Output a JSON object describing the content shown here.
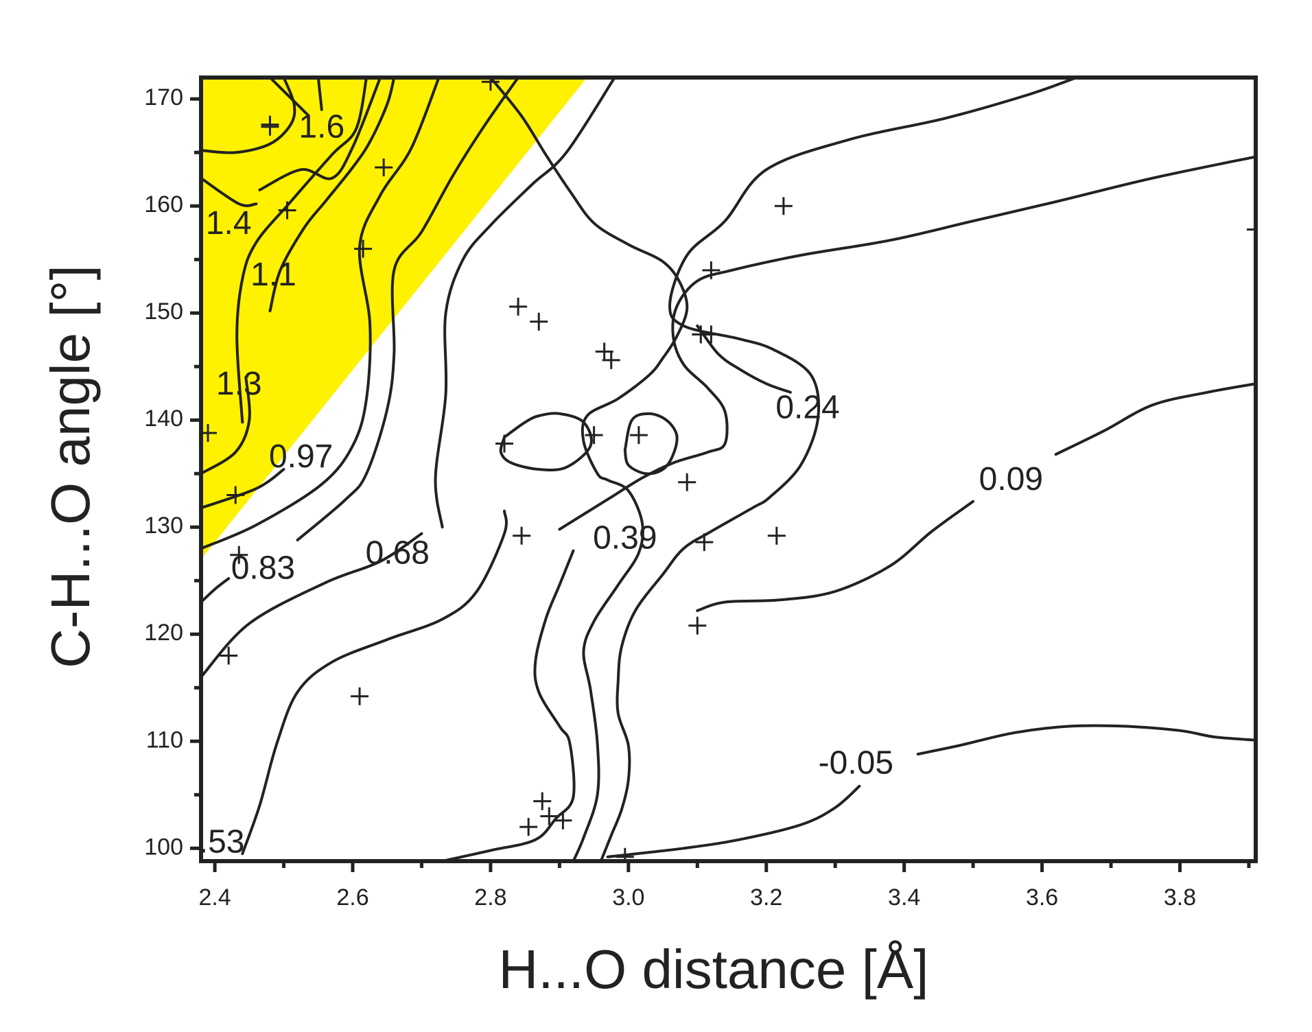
{
  "chart_data": {
    "type": "contour",
    "title": "",
    "xlabel": "H...O distance [Å]",
    "ylabel": "C-H...O angle [°]",
    "xlim": [
      2.38,
      3.91
    ],
    "ylim": [
      98.8,
      172
    ],
    "x_ticks": [
      2.4,
      2.6,
      2.8,
      3.0,
      3.2,
      3.4,
      3.6,
      3.8
    ],
    "x_tick_labels": [
      "2.4",
      "2.6",
      "2.8",
      "3.0",
      "3.2",
      "3.4",
      "3.6",
      "3.8"
    ],
    "y_ticks": [
      100,
      110,
      120,
      130,
      140,
      150,
      160,
      170
    ],
    "y_tick_labels": [
      "100",
      "110",
      "120",
      "130",
      "140",
      "150",
      "160",
      "170"
    ],
    "grid": false,
    "colors": {
      "highlight": "#fff200",
      "line": "#222222"
    },
    "highlight_region": [
      [
        2.38,
        172
      ],
      [
        2.94,
        172
      ],
      [
        2.38,
        127
      ]
    ],
    "contour_labels": [
      {
        "text": "1.6",
        "x": 2.555,
        "y": 167.2
      },
      {
        "text": "1.4",
        "x": 2.42,
        "y": 158.2
      },
      {
        "text": "1.1",
        "x": 2.485,
        "y": 153.4
      },
      {
        "text": "1.3",
        "x": 2.435,
        "y": 143.2
      },
      {
        "text": "0.97",
        "x": 2.525,
        "y": 136.4
      },
      {
        "text": "0.83",
        "x": 2.47,
        "y": 126.0
      },
      {
        "text": "0.68",
        "x": 2.665,
        "y": 127.4
      },
      {
        "text": "0.39",
        "x": 2.995,
        "y": 128.8
      },
      {
        "text": "0.24",
        "x": 3.26,
        "y": 141.0
      },
      {
        "text": "0.09",
        "x": 3.555,
        "y": 134.3
      },
      {
        "text": "-0.05",
        "x": 3.33,
        "y": 107.8
      },
      {
        "text": ".53",
        "x": 2.41,
        "y": 100.4
      }
    ],
    "contour_lines": [
      [
        [
          2.38,
          165.2
        ],
        [
          2.43,
          165.0
        ],
        [
          2.48,
          165.8
        ],
        [
          2.51,
          167.6
        ],
        [
          2.515,
          169.5
        ],
        [
          2.5,
          172
        ]
      ],
      [
        [
          2.48,
          172
        ],
        [
          2.535,
          168.5
        ]
      ],
      [
        [
          2.55,
          172
        ],
        [
          2.555,
          169
        ]
      ],
      [
        [
          2.465,
          161.5
        ],
        [
          2.525,
          163.4
        ],
        [
          2.57,
          162.6
        ],
        [
          2.6,
          165.5
        ],
        [
          2.64,
          172
        ]
      ],
      [
        [
          2.38,
          162.6
        ],
        [
          2.435,
          160.2
        ],
        [
          2.46,
          160.2
        ]
      ],
      [
        [
          2.44,
          139.8
        ],
        [
          2.432,
          147.8
        ],
        [
          2.44,
          153.2
        ],
        [
          2.46,
          156.6
        ],
        [
          2.51,
          160.4
        ],
        [
          2.57,
          164.8
        ],
        [
          2.605,
          167.2
        ],
        [
          2.62,
          172
        ]
      ],
      [
        [
          2.38,
          135.0
        ],
        [
          2.43,
          137.0
        ],
        [
          2.45,
          140.0
        ],
        [
          2.445,
          144.0
        ]
      ],
      [
        [
          2.38,
          131.8
        ],
        [
          2.46,
          133.6
        ],
        [
          2.5,
          135.4
        ]
      ],
      [
        [
          2.48,
          150.2
        ],
        [
          2.495,
          154.0
        ],
        [
          2.53,
          158.0
        ],
        [
          2.56,
          160.4
        ],
        [
          2.6,
          163.6
        ],
        [
          2.625,
          166.0
        ],
        [
          2.65,
          169.5
        ],
        [
          2.66,
          172
        ]
      ],
      [
        [
          2.38,
          128.0
        ],
        [
          2.46,
          130.2
        ],
        [
          2.555,
          134.0
        ],
        [
          2.6,
          137.6
        ],
        [
          2.62,
          142.0
        ],
        [
          2.625,
          149.0
        ],
        [
          2.61,
          156.2
        ],
        [
          2.64,
          161.0
        ],
        [
          2.685,
          165.4
        ],
        [
          2.725,
          172
        ]
      ],
      [
        [
          2.38,
          116.0
        ],
        [
          2.45,
          121.0
        ],
        [
          2.56,
          124.8
        ],
        [
          2.64,
          126.8
        ],
        [
          2.7,
          129.4
        ]
      ],
      [
        [
          2.38,
          123.0
        ],
        [
          2.4,
          124.2
        ],
        [
          2.42,
          125.2
        ]
      ],
      [
        [
          2.52,
          128.8
        ],
        [
          2.59,
          132.6
        ],
        [
          2.62,
          135.0
        ],
        [
          2.65,
          141.0
        ],
        [
          2.66,
          146.2
        ],
        [
          2.66,
          154.0
        ],
        [
          2.7,
          157.6
        ],
        [
          2.745,
          162.8
        ],
        [
          2.79,
          167.4
        ],
        [
          2.84,
          172
        ]
      ],
      [
        [
          2.73,
          130.0
        ],
        [
          2.72,
          134.6
        ],
        [
          2.735,
          142.4
        ],
        [
          2.735,
          150.0
        ],
        [
          2.76,
          155.0
        ],
        [
          2.8,
          158.2
        ],
        [
          2.86,
          162.0
        ],
        [
          2.91,
          165.0
        ],
        [
          2.98,
          172
        ]
      ],
      [
        [
          2.44,
          99.5
        ],
        [
          2.465,
          104.0
        ],
        [
          2.49,
          109.8
        ],
        [
          2.52,
          114.6
        ],
        [
          2.57,
          117.4
        ],
        [
          2.65,
          119.5
        ],
        [
          2.73,
          121.4
        ],
        [
          2.78,
          124.0
        ],
        [
          2.82,
          129.4
        ],
        [
          2.82,
          131.5
        ]
      ],
      [
        [
          2.73,
          98.8
        ],
        [
          2.8,
          99.8
        ],
        [
          2.865,
          100.8
        ],
        [
          2.895,
          102.8
        ],
        [
          2.92,
          104.8
        ],
        [
          2.915,
          109.8
        ],
        [
          2.9,
          111.4
        ],
        [
          2.87,
          114.6
        ],
        [
          2.865,
          117.4
        ],
        [
          2.88,
          121.4
        ],
        [
          2.9,
          124.6
        ],
        [
          2.92,
          127.8
        ]
      ],
      [
        [
          2.96,
          98.8
        ],
        [
          2.975,
          101.2
        ],
        [
          2.99,
          103.6
        ],
        [
          3.0,
          106.4
        ],
        [
          3.0,
          109.6
        ],
        [
          2.985,
          112.6
        ],
        [
          2.985,
          115.6
        ],
        [
          2.99,
          118.8
        ],
        [
          3.01,
          122.2
        ],
        [
          3.05,
          125.6
        ],
        [
          3.08,
          128.0
        ],
        [
          3.12,
          129.6
        ],
        [
          3.18,
          131.8
        ],
        [
          3.205,
          132.8
        ],
        [
          3.25,
          135.8
        ],
        [
          3.275,
          140.2
        ],
        [
          3.265,
          144.2
        ],
        [
          3.21,
          146.6
        ],
        [
          3.16,
          147.6
        ],
        [
          3.08,
          148.8
        ],
        [
          3.06,
          150.8
        ],
        [
          3.085,
          155.4
        ],
        [
          3.14,
          158.6
        ],
        [
          3.2,
          163.4
        ],
        [
          3.32,
          166.2
        ],
        [
          3.46,
          168.2
        ],
        [
          3.58,
          170.4
        ],
        [
          3.65,
          172
        ]
      ],
      [
        [
          2.92,
          98.8
        ],
        [
          2.935,
          101.0
        ],
        [
          2.955,
          105.0
        ],
        [
          2.955,
          109.8
        ],
        [
          2.945,
          114.8
        ],
        [
          2.935,
          118.4
        ],
        [
          2.95,
          121.2
        ],
        [
          2.985,
          124.6
        ],
        [
          3.015,
          127.6
        ],
        [
          3.02,
          130.4
        ],
        [
          3.0,
          133.4
        ],
        [
          2.97,
          134.4
        ],
        [
          2.955,
          135.0
        ],
        [
          2.935,
          138.0
        ],
        [
          2.94,
          140.4
        ],
        [
          2.985,
          142.0
        ],
        [
          3.03,
          144.2
        ],
        [
          3.05,
          145.8
        ],
        [
          3.07,
          147.8
        ],
        [
          3.085,
          150.4
        ],
        [
          3.075,
          152.8
        ],
        [
          3.05,
          154.8
        ],
        [
          3.0,
          156.4
        ],
        [
          2.95,
          158.4
        ],
        [
          2.915,
          161.4
        ],
        [
          2.88,
          164.8
        ],
        [
          2.845,
          168.4
        ],
        [
          2.8,
          172
        ]
      ],
      [
        [
          2.9,
          129.8
        ],
        [
          2.97,
          132.6
        ],
        [
          3.02,
          134.6
        ],
        [
          3.065,
          136.0
        ],
        [
          3.115,
          137.0
        ],
        [
          3.14,
          137.8
        ],
        [
          3.14,
          140.8
        ],
        [
          3.115,
          143.0
        ],
        [
          3.08,
          145.2
        ],
        [
          3.065,
          147.8
        ],
        [
          3.07,
          150.6
        ],
        [
          3.1,
          153.0
        ],
        [
          3.15,
          154.0
        ],
        [
          3.25,
          155.4
        ],
        [
          3.38,
          156.8
        ],
        [
          3.5,
          158.6
        ],
        [
          3.62,
          160.4
        ],
        [
          3.76,
          162.6
        ],
        [
          3.91,
          164.6
        ]
      ],
      [
        [
          3.1,
          148.8
        ],
        [
          3.13,
          146.2
        ],
        [
          3.16,
          144.8
        ],
        [
          3.2,
          143.4
        ],
        [
          3.235,
          142.6
        ]
      ],
      [
        [
          3.1,
          122.2
        ],
        [
          3.14,
          123.0
        ],
        [
          3.22,
          123.2
        ],
        [
          3.3,
          124.0
        ],
        [
          3.38,
          126.4
        ],
        [
          3.44,
          129.6
        ],
        [
          3.5,
          132.4
        ]
      ],
      [
        [
          3.62,
          136.8
        ],
        [
          3.69,
          139.0
        ],
        [
          3.76,
          141.4
        ],
        [
          3.84,
          142.6
        ],
        [
          3.91,
          143.4
        ]
      ],
      [
        [
          2.97,
          99.2
        ],
        [
          3.08,
          100.0
        ],
        [
          3.16,
          100.8
        ],
        [
          3.25,
          102.2
        ],
        [
          3.3,
          103.8
        ],
        [
          3.335,
          105.8
        ]
      ],
      [
        [
          3.42,
          108.8
        ],
        [
          3.48,
          109.6
        ],
        [
          3.56,
          110.8
        ],
        [
          3.64,
          111.4
        ],
        [
          3.72,
          111.4
        ],
        [
          3.8,
          111.0
        ],
        [
          3.85,
          110.4
        ],
        [
          3.91,
          110.1
        ]
      ],
      [
        [
          2.82,
          138.4
        ],
        [
          2.85,
          139.8
        ],
        [
          2.87,
          140.4
        ],
        [
          2.9,
          140.6
        ],
        [
          2.935,
          139.8
        ],
        [
          2.945,
          137.6
        ],
        [
          2.91,
          135.6
        ],
        [
          2.87,
          135.4
        ],
        [
          2.83,
          136.0
        ],
        [
          2.815,
          137.0
        ],
        [
          2.82,
          138.4
        ]
      ],
      [
        [
          2.995,
          137.2
        ],
        [
          3.005,
          140.0
        ],
        [
          3.03,
          140.6
        ],
        [
          3.055,
          140.0
        ],
        [
          3.07,
          138.6
        ],
        [
          3.065,
          136.8
        ],
        [
          3.05,
          135.4
        ],
        [
          3.025,
          135.0
        ],
        [
          3.0,
          135.8
        ],
        [
          2.995,
          137.2
        ]
      ]
    ],
    "markers": [
      [
        2.39,
        138.8
      ],
      [
        2.43,
        133.0
      ],
      [
        2.435,
        127.4
      ],
      [
        2.42,
        118.0
      ],
      [
        2.48,
        167.6
      ],
      [
        2.48,
        167.4
      ],
      [
        2.505,
        159.6
      ],
      [
        2.61,
        114.2
      ],
      [
        2.615,
        156.0
      ],
      [
        2.645,
        163.6
      ],
      [
        2.8,
        171.6
      ],
      [
        2.84,
        150.6
      ],
      [
        2.82,
        137.8
      ],
      [
        2.845,
        129.2
      ],
      [
        2.87,
        149.2
      ],
      [
        2.95,
        138.6
      ],
      [
        2.965,
        146.4
      ],
      [
        2.975,
        145.6
      ],
      [
        3.015,
        138.6
      ],
      [
        3.085,
        134.2
      ],
      [
        3.105,
        148.0
      ],
      [
        3.12,
        148.0
      ],
      [
        3.12,
        154.0
      ],
      [
        3.11,
        128.6
      ],
      [
        3.1,
        120.8
      ],
      [
        3.215,
        129.2
      ],
      [
        3.225,
        160.0
      ],
      [
        3.91,
        157.8
      ],
      [
        2.855,
        102.0
      ],
      [
        2.875,
        104.4
      ],
      [
        2.885,
        103.0
      ],
      [
        2.905,
        102.6
      ],
      [
        2.995,
        99.2
      ]
    ]
  }
}
